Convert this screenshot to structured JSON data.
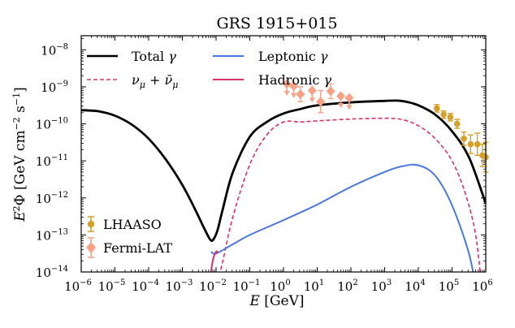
{
  "chart_data": {
    "type": "line",
    "title": "GRS 1915+015",
    "xlabel": "E [GeV]",
    "ylabel": "E²Φ [GeV cm⁻² s⁻¹]",
    "xlog": true,
    "ylog": true,
    "xlim_exp": [
      -6,
      6
    ],
    "ylim_exp": [
      -14,
      -7.62
    ],
    "x_ticks": [
      {
        "base": "10",
        "exp": "−6",
        "v": -6
      },
      {
        "base": "10",
        "exp": "−5",
        "v": -5
      },
      {
        "base": "10",
        "exp": "−4",
        "v": -4
      },
      {
        "base": "10",
        "exp": "−3",
        "v": -3
      },
      {
        "base": "10",
        "exp": "−2",
        "v": -2
      },
      {
        "base": "10",
        "exp": "−1",
        "v": -1
      },
      {
        "base": "10",
        "exp": "0",
        "v": 0
      },
      {
        "base": "10",
        "exp": "1",
        "v": 1
      },
      {
        "base": "10",
        "exp": "2",
        "v": 2
      },
      {
        "base": "10",
        "exp": "3",
        "v": 3
      },
      {
        "base": "10",
        "exp": "4",
        "v": 4
      },
      {
        "base": "10",
        "exp": "5",
        "v": 5
      },
      {
        "base": "10",
        "exp": "6",
        "v": 6
      }
    ],
    "y_ticks": [
      {
        "base": "10",
        "exp": "−14",
        "v": -14
      },
      {
        "base": "10",
        "exp": "−13",
        "v": -13
      },
      {
        "base": "10",
        "exp": "−12",
        "v": -12
      },
      {
        "base": "10",
        "exp": "−11",
        "v": -11
      },
      {
        "base": "10",
        "exp": "−10",
        "v": -10
      },
      {
        "base": "10",
        "exp": "−9",
        "v": -9
      },
      {
        "base": "10",
        "exp": "−8",
        "v": -8
      }
    ],
    "series": [
      {
        "name": "Total γ",
        "color": "#000000",
        "dash": "solid",
        "points": [
          [
            -6,
            -9.63
          ],
          [
            -5.5,
            -9.66
          ],
          [
            -5,
            -9.78
          ],
          [
            -4.5,
            -10.02
          ],
          [
            -4,
            -10.4
          ],
          [
            -3.5,
            -10.95
          ],
          [
            -3,
            -11.65
          ],
          [
            -2.6,
            -12.35
          ],
          [
            -2.3,
            -12.92
          ],
          [
            -2.15,
            -13.15
          ],
          [
            -2.05,
            -13.08
          ],
          [
            -1.95,
            -12.85
          ],
          [
            -1.8,
            -12.3
          ],
          [
            -1.5,
            -11.3
          ],
          [
            -1,
            -10.35
          ],
          [
            -0.5,
            -9.95
          ],
          [
            0,
            -9.72
          ],
          [
            0.5,
            -9.6
          ],
          [
            1,
            -9.5
          ],
          [
            2,
            -9.42
          ],
          [
            3,
            -9.38
          ],
          [
            3.5,
            -9.38
          ],
          [
            4,
            -9.5
          ],
          [
            4.5,
            -9.75
          ],
          [
            5,
            -10.2
          ],
          [
            5.5,
            -10.9
          ],
          [
            6,
            -12.15
          ]
        ]
      },
      {
        "name": "ν_μ + ν̄_μ",
        "color": "#d6336a",
        "dash": "dashed",
        "points": [
          [
            -2.05,
            -14.62
          ],
          [
            -1.8,
            -13.7
          ],
          [
            -1.5,
            -12.5
          ],
          [
            -1,
            -11.1
          ],
          [
            -0.5,
            -10.3
          ],
          [
            0,
            -9.95
          ],
          [
            0.5,
            -9.95
          ],
          [
            1,
            -9.92
          ],
          [
            2,
            -9.87
          ],
          [
            3,
            -9.85
          ],
          [
            3.5,
            -9.88
          ],
          [
            4,
            -10.05
          ],
          [
            4.5,
            -10.4
          ],
          [
            5,
            -11.0
          ],
          [
            5.4,
            -11.9
          ],
          [
            5.7,
            -13.0
          ],
          [
            5.9,
            -14.62
          ]
        ]
      },
      {
        "name": "Leptonic γ",
        "color": "#4a77e0",
        "dash": "solid",
        "points": [
          [
            -2.15,
            -13.45
          ],
          [
            -2,
            -13.5
          ],
          [
            -1.5,
            -13.25
          ],
          [
            -1,
            -13.0
          ],
          [
            0,
            -12.6
          ],
          [
            1,
            -12.18
          ],
          [
            2,
            -11.7
          ],
          [
            3,
            -11.3
          ],
          [
            3.5,
            -11.15
          ],
          [
            4,
            -11.12
          ],
          [
            4.5,
            -11.4
          ],
          [
            5,
            -12.2
          ],
          [
            5.5,
            -13.5
          ],
          [
            5.75,
            -14.62
          ]
        ]
      },
      {
        "name": "Hadronic γ",
        "color": "#d6336a",
        "dash": "solid",
        "points": [
          [
            -2.25,
            -14.62
          ],
          [
            -2.1,
            -13.7
          ],
          [
            -2,
            -13.45
          ],
          [
            -1.95,
            -13.5
          ]
        ]
      }
    ],
    "datasets": [
      {
        "name": "Fermi-LAT",
        "color": "#f9a186",
        "marker": "diamond",
        "points": [
          {
            "x": 0.1,
            "y": -8.92,
            "ul": true
          },
          {
            "x": 0.3,
            "y": -8.98,
            "ul": true
          },
          {
            "x": 0.5,
            "y": -9.2,
            "ul": false,
            "err": 0.2
          },
          {
            "x": 0.85,
            "y": -9.1,
            "ul": true
          },
          {
            "x": 1.1,
            "y": -9.4,
            "ul": false,
            "err": 0.3
          },
          {
            "x": 1.4,
            "y": -9.12,
            "ul": false,
            "err": 0.2
          },
          {
            "x": 1.7,
            "y": -9.25,
            "ul": true
          },
          {
            "x": 1.95,
            "y": -9.3,
            "ul": true
          }
        ]
      },
      {
        "name": "LHAASO",
        "color": "#d4a02a",
        "marker": "circle",
        "points": [
          {
            "x": 4.55,
            "y": -9.58,
            "err": 0.1
          },
          {
            "x": 4.75,
            "y": -9.75,
            "err": 0.1
          },
          {
            "x": 4.95,
            "y": -9.82,
            "err": 0.1
          },
          {
            "x": 5.15,
            "y": -10.0,
            "err": 0.12
          },
          {
            "x": 5.35,
            "y": -10.4,
            "err": 0.18
          },
          {
            "x": 5.55,
            "y": -10.55,
            "err": 0.25
          },
          {
            "x": 5.75,
            "y": -10.55,
            "err": 0.3
          },
          {
            "x": 5.9,
            "y": -10.85,
            "err": 0.3
          },
          {
            "x": 6.0,
            "y": -10.9,
            "err": 0.4
          }
        ]
      }
    ],
    "legend_top": [
      {
        "label": "Total γ",
        "color": "#000000",
        "dash": "solid"
      },
      {
        "label": "ν_μ + ν̄_μ",
        "color": "#d6336a",
        "dash": "dashed"
      },
      {
        "label": "Leptonic γ",
        "color": "#4a77e0",
        "dash": "solid"
      },
      {
        "label": "Hadronic γ",
        "color": "#d6336a",
        "dash": "solid"
      }
    ],
    "legend_bottom": [
      {
        "label": "LHAASO",
        "color": "#d4a02a",
        "marker": "circle"
      },
      {
        "label": "Fermi-LAT",
        "color": "#f9a186",
        "marker": "diamond"
      }
    ]
  }
}
